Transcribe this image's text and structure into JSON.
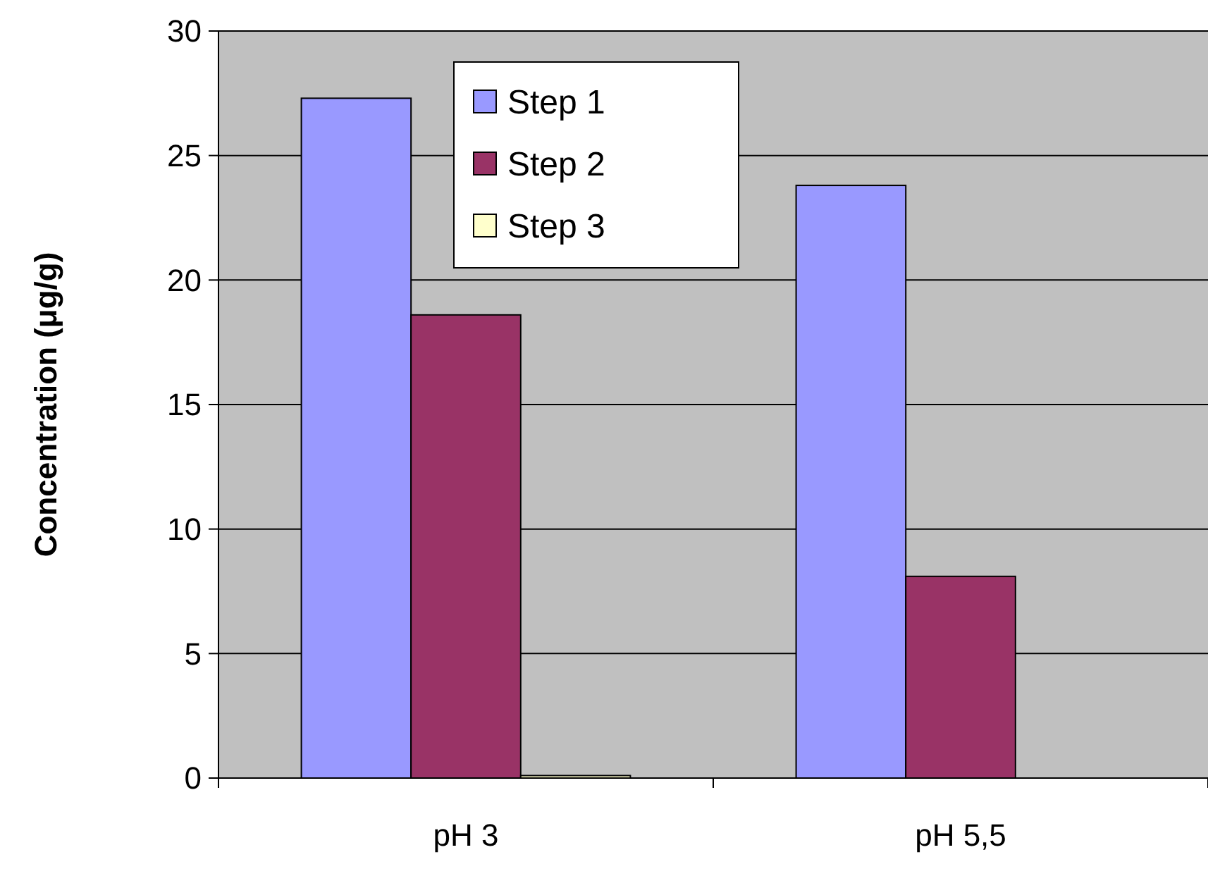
{
  "chart_data": {
    "type": "bar",
    "ylabel": "Concentration  (μg/g)",
    "categories": [
      "pH 3",
      "pH 5,5"
    ],
    "series": [
      {
        "name": "Step 1",
        "color": "#9999ff",
        "values": [
          27.3,
          23.8
        ]
      },
      {
        "name": "Step 2",
        "color": "#993366",
        "values": [
          18.6,
          8.1
        ]
      },
      {
        "name": "Step 3",
        "color": "#ffffcc",
        "values": [
          0.1,
          0
        ]
      }
    ],
    "ylim": [
      0,
      30
    ],
    "yticks": [
      0,
      5,
      10,
      15,
      20,
      25,
      30
    ],
    "grid": "y",
    "legend": "top"
  }
}
